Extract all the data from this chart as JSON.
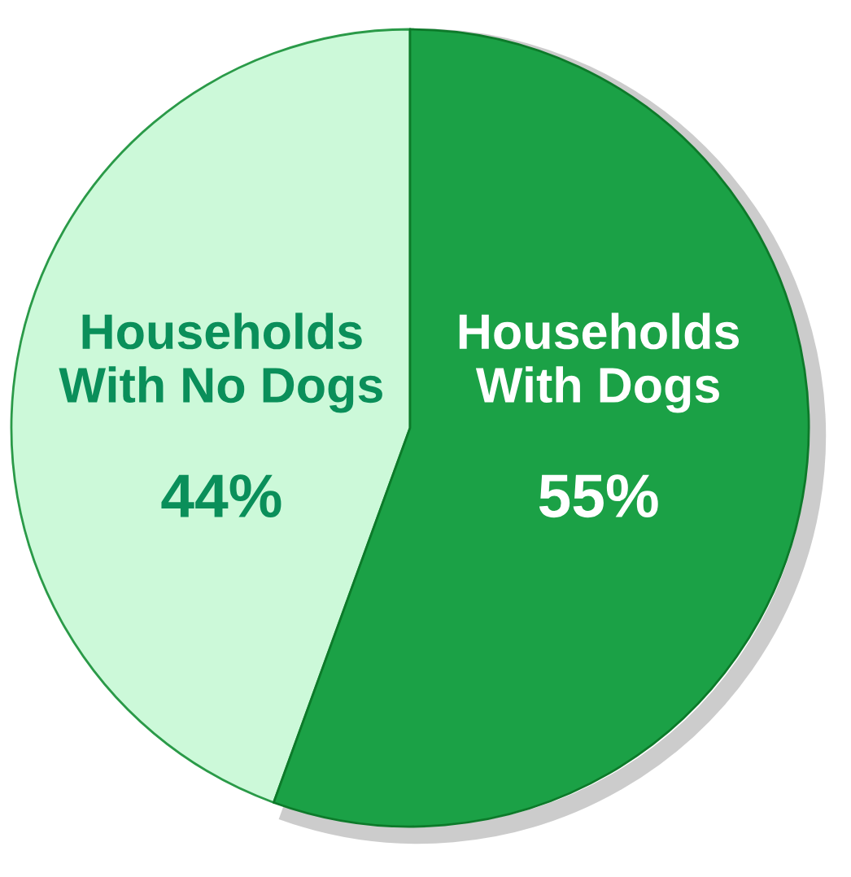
{
  "chart_data": {
    "type": "pie",
    "categories": [
      "Households\nWith Dogs",
      "Households\nWith No Dogs"
    ],
    "values": [
      55,
      44
    ],
    "colors": [
      "#1ba146",
      "#ccf9d9"
    ],
    "value_labels": [
      "55%",
      "44%"
    ]
  }
}
